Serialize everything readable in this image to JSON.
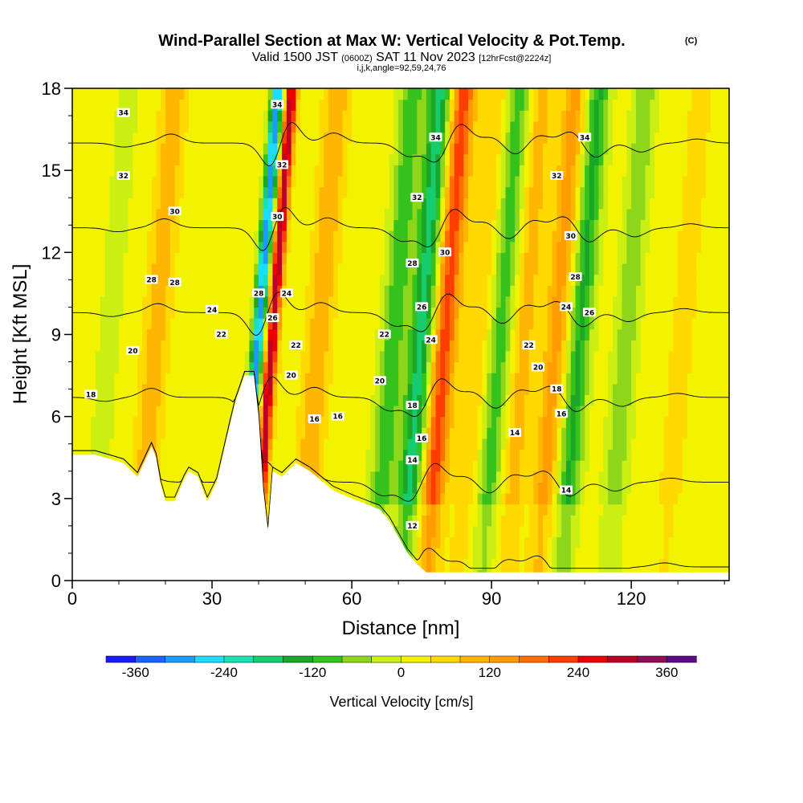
{
  "title": {
    "main": "Wind-Parallel Section at Max W: Vertical Velocity & Pot.Temp.",
    "copyright": "(C)",
    "valid_prefix": "Valid 1500 JST",
    "valid_utc": "(0600Z)",
    "valid_date": "SAT 11 Nov 2023",
    "forecast_info": "[12hrFcst@2224z]",
    "grid_info": "i,j,k,angle=92,59,24,76"
  },
  "chart_data": {
    "type": "heatmap",
    "title": "Wind-Parallel Section at Max W: Vertical Velocity & Pot.Temp.",
    "xlabel": "Distance [nm]",
    "ylabel": "Height [Kft MSL]",
    "xlim": [
      0,
      141
    ],
    "ylim": [
      0,
      18
    ],
    "x_ticks": [
      0,
      30,
      60,
      90,
      120
    ],
    "x_tick_labels": [
      "0",
      "30",
      "60",
      "90",
      "120"
    ],
    "y_ticks": [
      0,
      3,
      6,
      9,
      12,
      15,
      18
    ],
    "y_tick_labels": [
      "0",
      "3",
      "6",
      "9",
      "12",
      "15",
      "18"
    ],
    "colorbar": {
      "title": "Vertical Velocity [cm/s]",
      "min": -400,
      "max": 400,
      "step": 40,
      "tick_values": [
        -360,
        -240,
        -120,
        0,
        120,
        240,
        360
      ],
      "tick_labels": [
        "-360",
        "-240",
        "-120",
        "0",
        "120",
        "240",
        "360"
      ],
      "colors": [
        "#1a1aff",
        "#1c64ff",
        "#1c9bff",
        "#1cdcff",
        "#18e2b4",
        "#17cc6e",
        "#1aa626",
        "#36c21c",
        "#8ed61c",
        "#ccef13",
        "#f3f300",
        "#ffd900",
        "#ffb600",
        "#ff9c00",
        "#ff6e00",
        "#ff3d00",
        "#ef0000",
        "#be0027",
        "#8e0d57",
        "#5c0a88"
      ]
    },
    "terrain_kft": [
      [
        0,
        4.6
      ],
      [
        5,
        4.6
      ],
      [
        11,
        4.3
      ],
      [
        14,
        3.8
      ],
      [
        17,
        4.9
      ],
      [
        18,
        4.5
      ],
      [
        19,
        3.5
      ],
      [
        20,
        2.9
      ],
      [
        22,
        2.9
      ],
      [
        24,
        3.7
      ],
      [
        25,
        4.0
      ],
      [
        27,
        3.8
      ],
      [
        29,
        2.9
      ],
      [
        31,
        3.6
      ],
      [
        34,
        5.8
      ],
      [
        35,
        6.5
      ],
      [
        37,
        7.5
      ],
      [
        39,
        7.5
      ],
      [
        40,
        6.0
      ],
      [
        41,
        3.3
      ],
      [
        42,
        1.8
      ],
      [
        43,
        4.0
      ],
      [
        45,
        3.8
      ],
      [
        48,
        4.3
      ],
      [
        51,
        4.0
      ],
      [
        56,
        3.3
      ],
      [
        60,
        3.0
      ],
      [
        63,
        2.8
      ],
      [
        66,
        2.6
      ],
      [
        68,
        2.2
      ],
      [
        70,
        1.6
      ],
      [
        72,
        1.0
      ],
      [
        74,
        0.6
      ],
      [
        76,
        0.3
      ],
      [
        80,
        0.3
      ],
      [
        141,
        0.3
      ]
    ],
    "updraft_bands": [
      {
        "x": 40,
        "peak_cm_s": -320
      },
      {
        "x": 43,
        "peak_cm_s": 300
      },
      {
        "x": 18,
        "peak_cm_s": 90
      },
      {
        "x": 8,
        "peak_cm_s": -40
      },
      {
        "x": 53,
        "peak_cm_s": 100
      },
      {
        "x": 69,
        "peak_cm_s": -130
      },
      {
        "x": 75,
        "peak_cm_s": -200
      },
      {
        "x": 80,
        "peak_cm_s": 200
      },
      {
        "x": 87,
        "peak_cm_s": 60
      },
      {
        "x": 92,
        "peak_cm_s": -120
      },
      {
        "x": 97,
        "peak_cm_s": 80
      },
      {
        "x": 104,
        "peak_cm_s": 120
      },
      {
        "x": 109,
        "peak_cm_s": -150
      },
      {
        "x": 119,
        "peak_cm_s": -90
      },
      {
        "x": 131,
        "peak_cm_s": 40
      }
    ],
    "contour_levels_c": [
      12,
      14,
      16,
      18,
      20,
      22,
      24,
      26,
      28,
      30,
      32,
      34
    ],
    "contour_labels": [
      {
        "text": "34",
        "x": 11,
        "y": 17.1
      },
      {
        "text": "32",
        "x": 11,
        "y": 14.8
      },
      {
        "text": "30",
        "x": 22,
        "y": 13.5
      },
      {
        "text": "28",
        "x": 17,
        "y": 11.0
      },
      {
        "text": "28",
        "x": 22,
        "y": 10.9
      },
      {
        "text": "24",
        "x": 30,
        "y": 9.9
      },
      {
        "text": "22",
        "x": 32,
        "y": 9.0
      },
      {
        "text": "20",
        "x": 13,
        "y": 8.4
      },
      {
        "text": "18",
        "x": 4,
        "y": 6.8
      },
      {
        "text": "34",
        "x": 44,
        "y": 17.4
      },
      {
        "text": "32",
        "x": 45,
        "y": 15.2
      },
      {
        "text": "30",
        "x": 44,
        "y": 13.3
      },
      {
        "text": "28",
        "x": 40,
        "y": 10.5
      },
      {
        "text": "24",
        "x": 46,
        "y": 10.5
      },
      {
        "text": "26",
        "x": 43,
        "y": 9.6
      },
      {
        "text": "22",
        "x": 48,
        "y": 8.6
      },
      {
        "text": "20",
        "x": 47,
        "y": 7.5
      },
      {
        "text": "16",
        "x": 52,
        "y": 5.9
      },
      {
        "text": "16",
        "x": 57,
        "y": 6.0
      },
      {
        "text": "34",
        "x": 78,
        "y": 16.2
      },
      {
        "text": "32",
        "x": 74,
        "y": 14.0
      },
      {
        "text": "30",
        "x": 80,
        "y": 12.0
      },
      {
        "text": "28",
        "x": 73,
        "y": 11.6
      },
      {
        "text": "26",
        "x": 75,
        "y": 10.0
      },
      {
        "text": "24",
        "x": 77,
        "y": 8.8
      },
      {
        "text": "22",
        "x": 67,
        "y": 9.0
      },
      {
        "text": "20",
        "x": 66,
        "y": 7.3
      },
      {
        "text": "18",
        "x": 73,
        "y": 6.4
      },
      {
        "text": "16",
        "x": 75,
        "y": 5.2
      },
      {
        "text": "14",
        "x": 73,
        "y": 4.4
      },
      {
        "text": "12",
        "x": 73,
        "y": 2.0
      },
      {
        "text": "34",
        "x": 110,
        "y": 16.2
      },
      {
        "text": "32",
        "x": 104,
        "y": 14.8
      },
      {
        "text": "30",
        "x": 107,
        "y": 12.6
      },
      {
        "text": "28",
        "x": 108,
        "y": 11.1
      },
      {
        "text": "24",
        "x": 106,
        "y": 10.0
      },
      {
        "text": "26",
        "x": 111,
        "y": 9.8
      },
      {
        "text": "22",
        "x": 98,
        "y": 8.6
      },
      {
        "text": "20",
        "x": 100,
        "y": 7.8
      },
      {
        "text": "18",
        "x": 104,
        "y": 7.0
      },
      {
        "text": "16",
        "x": 105,
        "y": 6.1
      },
      {
        "text": "14",
        "x": 95,
        "y": 5.4
      },
      {
        "text": "14",
        "x": 106,
        "y": 3.3
      }
    ],
    "grid": false
  }
}
